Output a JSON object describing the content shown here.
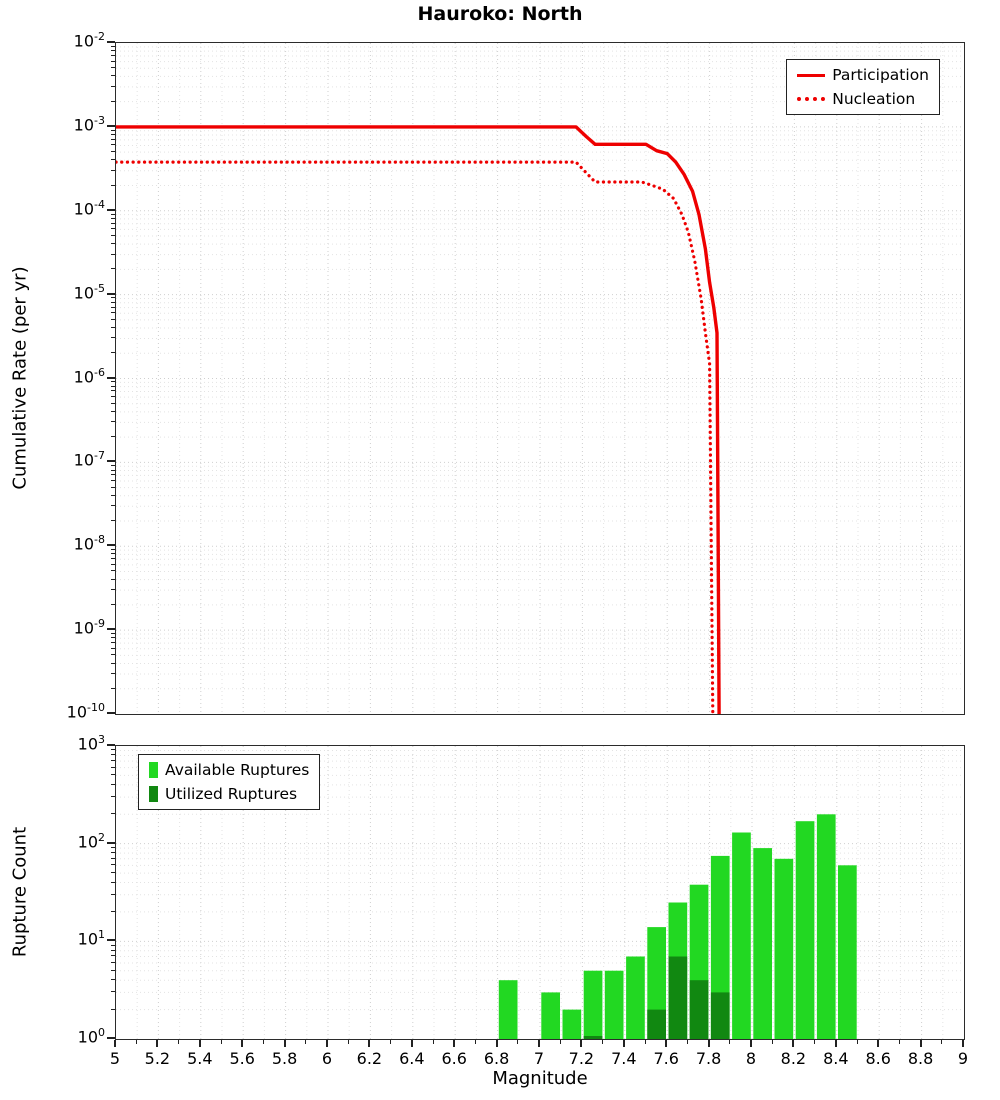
{
  "title": "Hauroko: North",
  "chart_data": [
    {
      "type": "line",
      "title": "Hauroko: North",
      "xlabel": "Magnitude",
      "ylabel": "Cumulative Rate (per yr)",
      "xlim": [
        5,
        9
      ],
      "ylim": [
        1e-10,
        0.01
      ],
      "grid": true,
      "legend_position": "top-right",
      "x_tick_labels": [
        "5",
        "5.2",
        "5.4",
        "5.6",
        "5.8",
        "6",
        "6.2",
        "6.4",
        "6.6",
        "6.8",
        "7",
        "7.2",
        "7.4",
        "7.6",
        "7.8",
        "8",
        "8.2",
        "8.4",
        "8.6",
        "8.8",
        "9"
      ],
      "y_tick_exponents": [
        -2,
        -3,
        -4,
        -5,
        -6,
        -7,
        -8,
        -9,
        -10
      ],
      "series": [
        {
          "name": "Participation",
          "color": "#ee0000",
          "style": "solid",
          "points": [
            [
              5.0,
              0.001
            ],
            [
              7.17,
              0.001
            ],
            [
              7.22,
              0.00076
            ],
            [
              7.26,
              0.00062
            ],
            [
              7.5,
              0.00062
            ],
            [
              7.55,
              0.00052
            ],
            [
              7.6,
              0.00048
            ],
            [
              7.64,
              0.00038
            ],
            [
              7.68,
              0.00027
            ],
            [
              7.72,
              0.00017
            ],
            [
              7.75,
              9e-05
            ],
            [
              7.78,
              3.5e-05
            ],
            [
              7.8,
              1.4e-05
            ],
            [
              7.82,
              7e-06
            ],
            [
              7.835,
              3.5e-06
            ],
            [
              7.845,
              1e-10
            ]
          ]
        },
        {
          "name": "Nucleation",
          "color": "#ee0000",
          "style": "dotted",
          "points": [
            [
              5.0,
              0.00038
            ],
            [
              7.17,
              0.00038
            ],
            [
              7.22,
              0.00028
            ],
            [
              7.26,
              0.00022
            ],
            [
              7.48,
              0.00022
            ],
            [
              7.53,
              0.0002
            ],
            [
              7.58,
              0.00018
            ],
            [
              7.63,
              0.00014
            ],
            [
              7.67,
              9e-05
            ],
            [
              7.7,
              5.5e-05
            ],
            [
              7.73,
              2.5e-05
            ],
            [
              7.76,
              9e-06
            ],
            [
              7.78,
              3.5e-06
            ],
            [
              7.8,
              1.5e-06
            ],
            [
              7.815,
              1e-10
            ]
          ]
        }
      ]
    },
    {
      "type": "bar",
      "xlabel": "Magnitude",
      "ylabel": "Rupture Count",
      "xlim": [
        5,
        9
      ],
      "ylim": [
        1,
        1000
      ],
      "grid": true,
      "legend_position": "top-left",
      "bin_width": 0.1,
      "x_tick_labels": [
        "5",
        "5.2",
        "5.4",
        "5.6",
        "5.8",
        "6",
        "6.2",
        "6.4",
        "6.6",
        "6.8",
        "7",
        "7.2",
        "7.4",
        "7.6",
        "7.8",
        "8",
        "8.2",
        "8.4",
        "8.6",
        "8.8",
        "9"
      ],
      "y_tick_exponents": [
        0,
        1,
        2,
        3
      ],
      "series": [
        {
          "name": "Available Ruptures",
          "color": "#22d822",
          "bins": [
            [
              6.85,
              4
            ],
            [
              7.05,
              3
            ],
            [
              7.15,
              2
            ],
            [
              7.25,
              5
            ],
            [
              7.35,
              5
            ],
            [
              7.45,
              7
            ],
            [
              7.55,
              14
            ],
            [
              7.65,
              25
            ],
            [
              7.75,
              38
            ],
            [
              7.85,
              75
            ],
            [
              7.95,
              130
            ],
            [
              8.05,
              90
            ],
            [
              8.15,
              70
            ],
            [
              8.25,
              170
            ],
            [
              8.35,
              200
            ],
            [
              8.45,
              60
            ]
          ]
        },
        {
          "name": "Utilized Ruptures",
          "color": "#118811",
          "bins": [
            [
              7.25,
              1
            ],
            [
              7.55,
              2
            ],
            [
              7.65,
              7
            ],
            [
              7.75,
              4
            ],
            [
              7.85,
              3
            ]
          ]
        }
      ]
    }
  ]
}
